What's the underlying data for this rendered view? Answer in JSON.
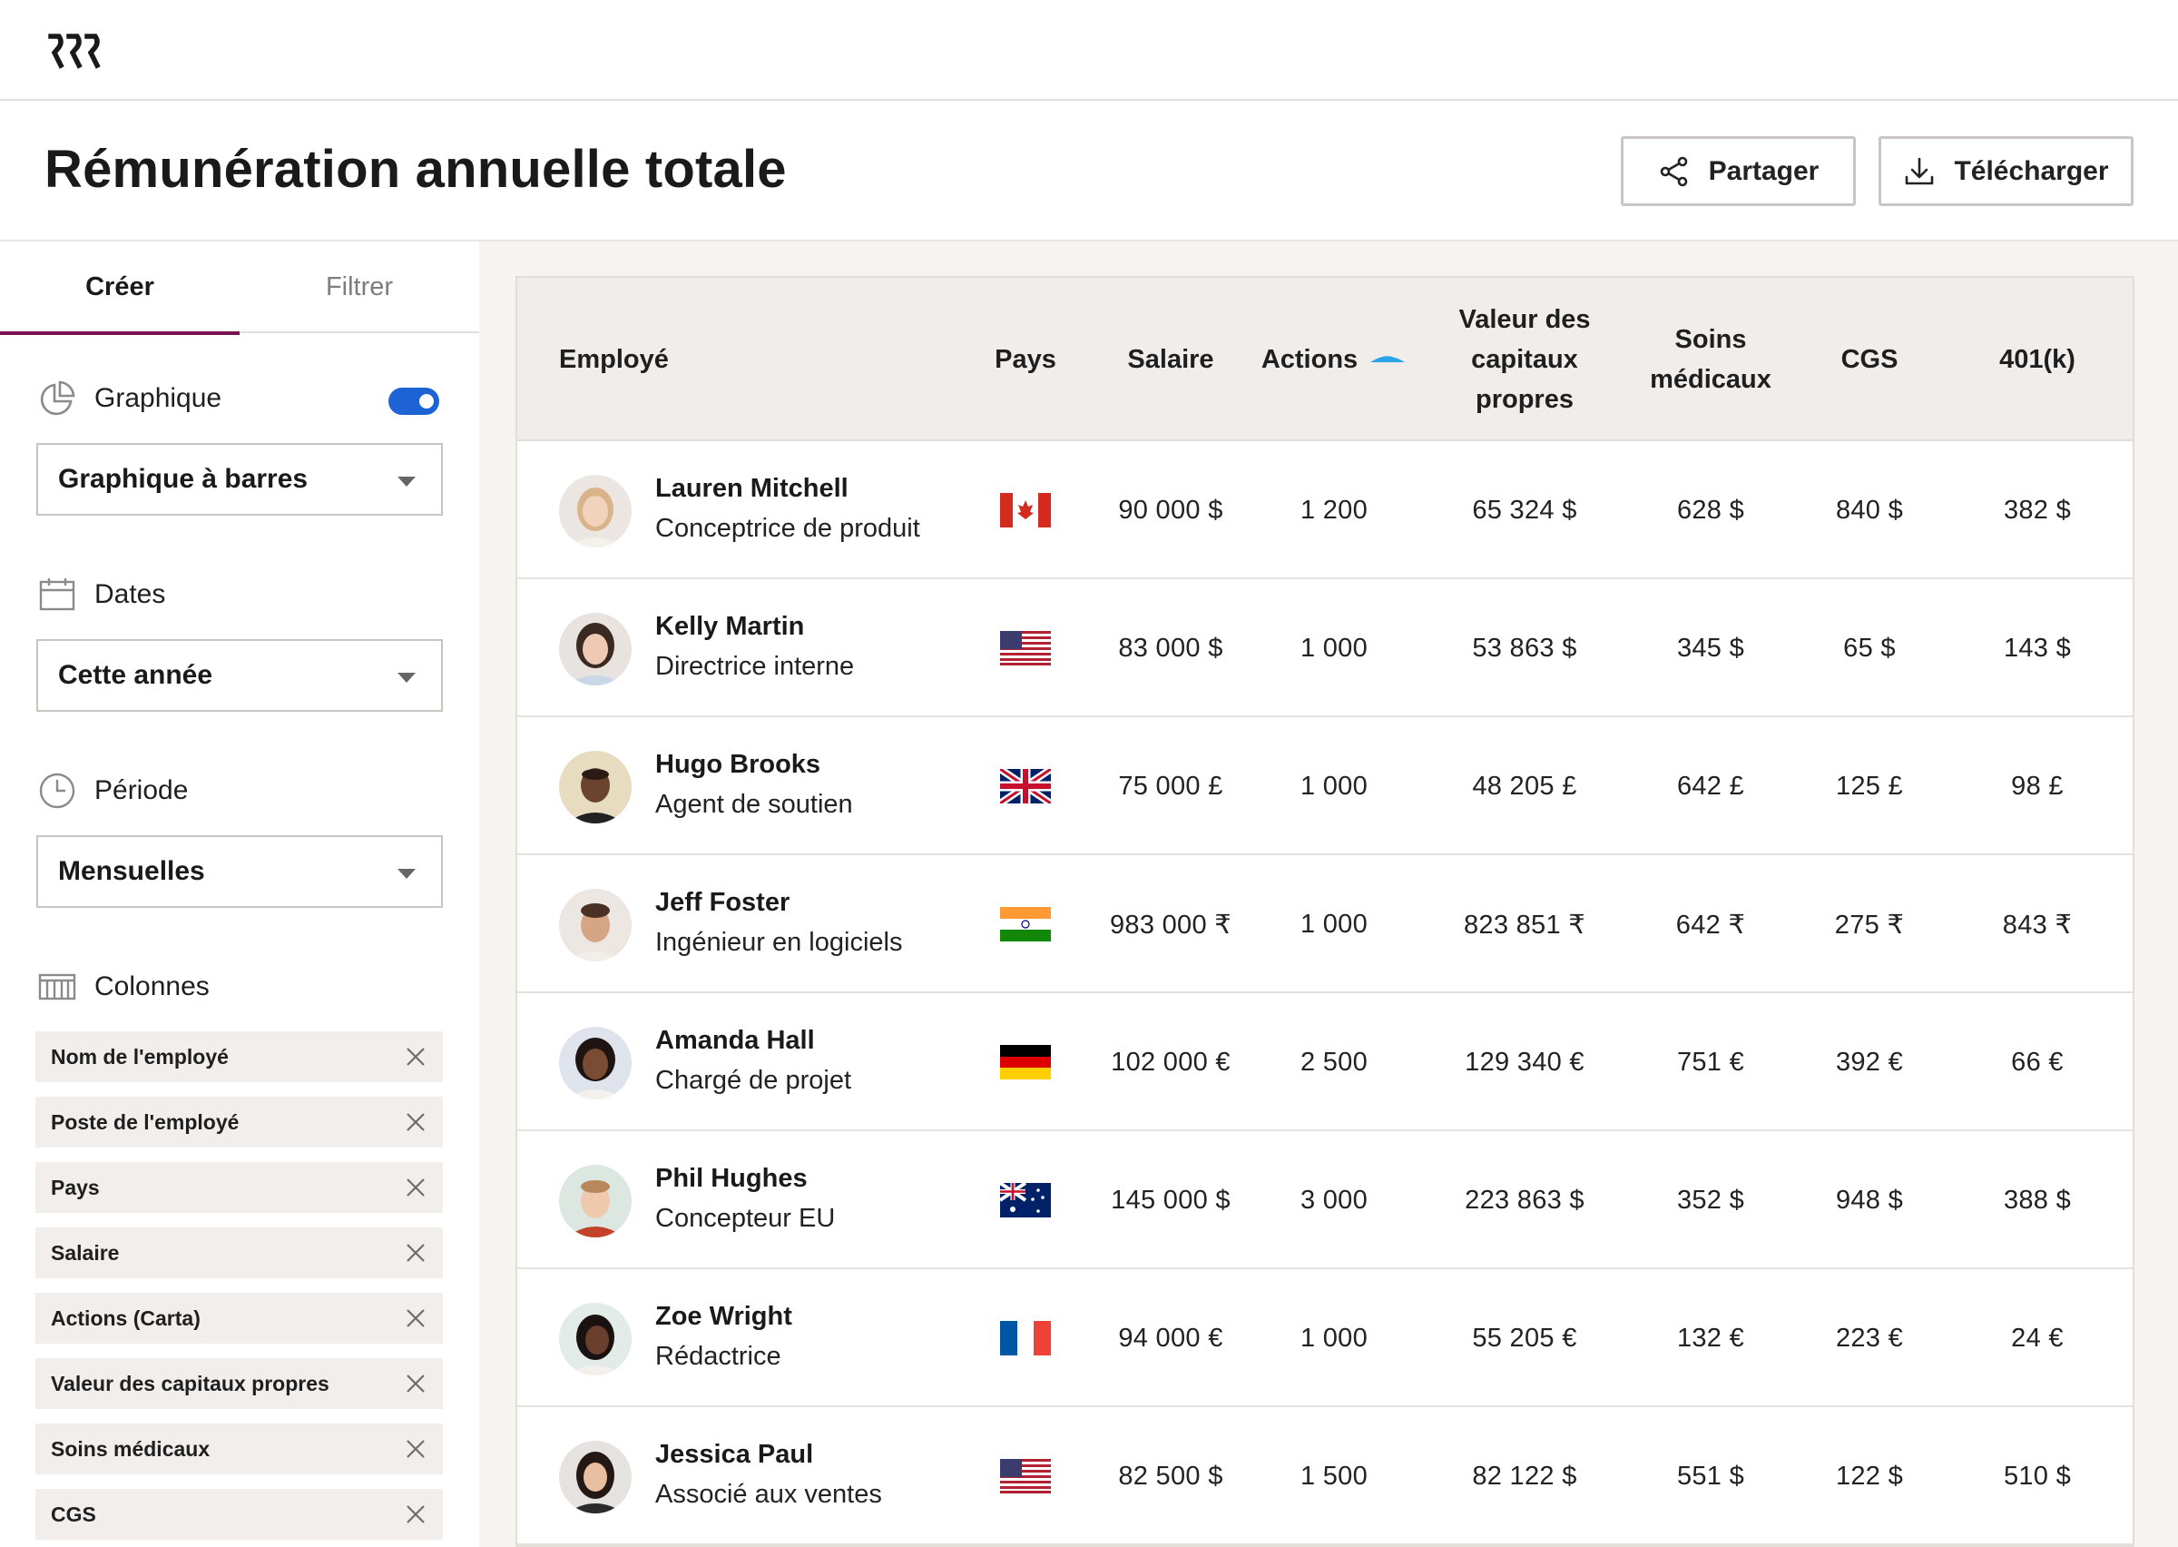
{
  "page": {
    "title": "Rémunération annuelle totale"
  },
  "header": {
    "share_label": "Partager",
    "download_label": "Télécharger"
  },
  "sidebar": {
    "tabs": [
      {
        "label": "Créer",
        "active": true
      },
      {
        "label": "Filtrer",
        "active": false
      }
    ],
    "chart": {
      "label": "Graphique",
      "toggle_on": true,
      "select_value": "Graphique à barres"
    },
    "dates": {
      "label": "Dates",
      "select_value": "Cette année"
    },
    "period": {
      "label": "Période",
      "select_value": "Mensuelles"
    },
    "columns": {
      "label": "Colonnes",
      "chips": [
        {
          "label": "Nom de l'employé"
        },
        {
          "label": "Poste de l'employé"
        },
        {
          "label": "Pays"
        },
        {
          "label": "Salaire"
        },
        {
          "label": "Actions (Carta)"
        },
        {
          "label": "Valeur des capitaux propres"
        },
        {
          "label": "Soins médicaux"
        },
        {
          "label": "CGS"
        }
      ]
    }
  },
  "table": {
    "headers": {
      "employee": "Employé",
      "country": "Pays",
      "salary": "Salaire",
      "actions": "Actions",
      "equity_l1": "Valeur des",
      "equity_l2": "capitaux",
      "equity_l3": "propres",
      "medical_l1": "Soins",
      "medical_l2": "médicaux",
      "cgs": "CGS",
      "k401": "401(k)"
    },
    "rows": [
      {
        "name": "Lauren Mitchell",
        "role": "Conceptrice de produit",
        "flag": "canada-flag",
        "salary": "90 000 $",
        "actions": "1 200",
        "equity": "65 324 $",
        "medical": "628 $",
        "cgs": "840 $",
        "k401": "382 $"
      },
      {
        "name": "Kelly Martin",
        "role": "Directrice interne",
        "flag": "usa-flag",
        "salary": "83 000 $",
        "actions": "1 000",
        "equity": "53 863 $",
        "medical": "345 $",
        "cgs": "65 $",
        "k401": "143 $"
      },
      {
        "name": "Hugo Brooks",
        "role": "Agent de soutien",
        "flag": "uk-flag",
        "salary": "75 000 £",
        "actions": "1 000",
        "equity": "48 205 £",
        "medical": "642 £",
        "cgs": "125 £",
        "k401": "98 £"
      },
      {
        "name": "Jeff Foster",
        "role": "Ingénieur en logiciels",
        "flag": "india-flag",
        "salary": "983 000 ₹",
        "actions": "1 000",
        "equity": "823 851 ₹",
        "medical": "642 ₹",
        "cgs": "275 ₹",
        "k401": "843 ₹"
      },
      {
        "name": "Amanda Hall",
        "role": "Chargé de projet",
        "flag": "germany-flag",
        "salary": "102 000 €",
        "actions": "2 500",
        "equity": "129 340 €",
        "medical": "751 €",
        "cgs": "392 €",
        "k401": "66 €"
      },
      {
        "name": "Phil Hughes",
        "role": "Concepteur EU",
        "flag": "australia-flag",
        "salary": "145 000 $",
        "actions": "3 000",
        "equity": "223 863 $",
        "medical": "352 $",
        "cgs": "948 $",
        "k401": "388 $"
      },
      {
        "name": "Zoe Wright",
        "role": "Rédactrice",
        "flag": "france-flag",
        "salary": "94 000 €",
        "actions": "1 000",
        "equity": "55 205 €",
        "medical": "132 €",
        "cgs": "223 €",
        "k401": "24 €"
      },
      {
        "name": "Jessica Paul",
        "role": "Associé aux ventes",
        "flag": "usa-flag",
        "salary": "82 500 $",
        "actions": "1 500",
        "equity": "82 122 $",
        "medical": "551 $",
        "cgs": "122 $",
        "k401": "510 $"
      }
    ]
  },
  "colors": {
    "accent": "#7a1150",
    "toggle": "#1d63d6",
    "sort": "#2aa3e8",
    "panel_bg": "#f6f3f0",
    "chip_bg": "#f1eeeb"
  }
}
